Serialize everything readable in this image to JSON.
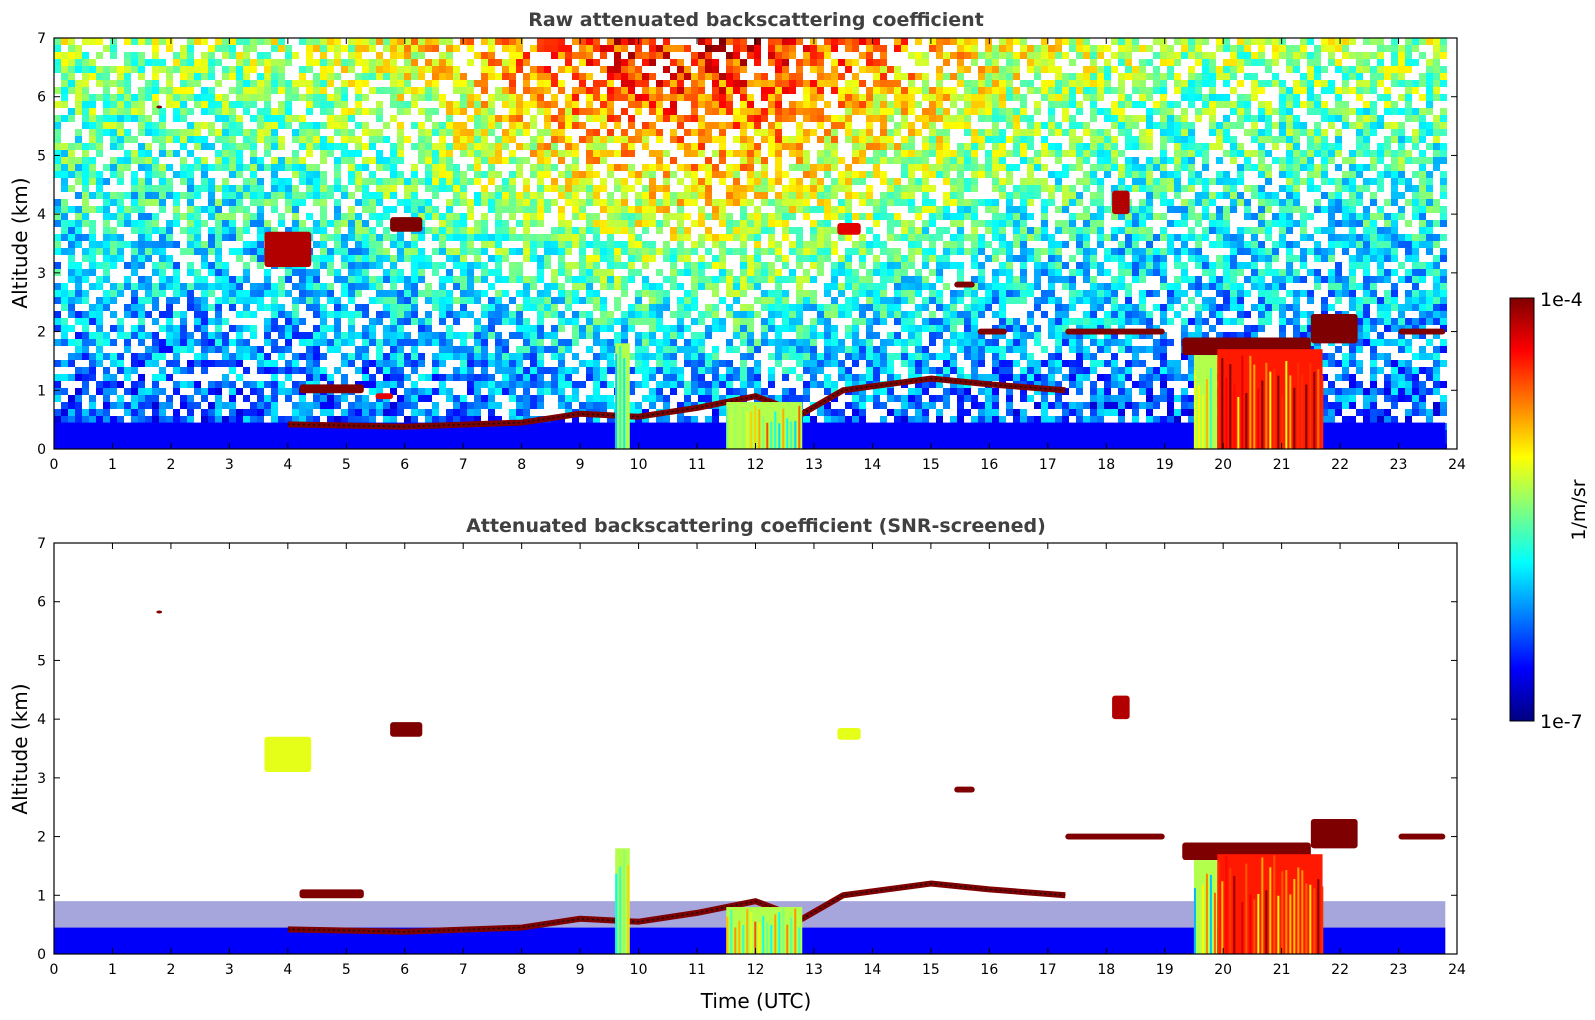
{
  "chart_data": [
    {
      "type": "heatmap",
      "title": "Raw attenuated backscattering coefficient",
      "xlabel": "",
      "ylabel": "Altitude (km)",
      "xlim": [
        0,
        24
      ],
      "ylim": [
        0,
        7
      ],
      "xticks": [
        "0",
        "1",
        "2",
        "3",
        "4",
        "5",
        "6",
        "7",
        "8",
        "9",
        "10",
        "11",
        "12",
        "13",
        "14",
        "15",
        "16",
        "17",
        "18",
        "19",
        "20",
        "21",
        "22",
        "23",
        "24"
      ],
      "yticks": [
        "0",
        "1",
        "2",
        "3",
        "4",
        "5",
        "6",
        "7"
      ],
      "background": "noisy",
      "features": [
        {
          "kind": "surface_layer",
          "x": [
            0,
            23.8
          ],
          "y": [
            0,
            0.45
          ],
          "level": 0.12
        },
        {
          "kind": "boundary_layer_top",
          "points": [
            [
              4,
              0.42
            ],
            [
              6,
              0.38
            ],
            [
              8,
              0.45
            ],
            [
              9,
              0.6
            ],
            [
              10,
              0.55
            ],
            [
              11,
              0.7
            ],
            [
              12,
              0.9
            ],
            [
              12.8,
              0.6
            ],
            [
              13.5,
              1.0
            ],
            [
              15,
              1.2
            ],
            [
              16,
              1.1
            ],
            [
              17.3,
              1.0
            ]
          ],
          "level": 1.0
        },
        {
          "kind": "cloud",
          "x": [
            4.2,
            5.3
          ],
          "y": [
            0.95,
            1.1
          ],
          "level": 1.0
        },
        {
          "kind": "cloud",
          "x": [
            5.5,
            5.8
          ],
          "y": [
            0.85,
            0.95
          ],
          "level": 0.9
        },
        {
          "kind": "cloud",
          "x": [
            3.6,
            4.4
          ],
          "y": [
            3.1,
            3.7
          ],
          "level": 0.95
        },
        {
          "kind": "cloud",
          "x": [
            5.75,
            6.3
          ],
          "y": [
            3.7,
            3.95
          ],
          "level": 1.0
        },
        {
          "kind": "cloud",
          "x": [
            1.75,
            1.85
          ],
          "y": [
            5.8,
            5.85
          ],
          "level": 1.0
        },
        {
          "kind": "cloud",
          "x": [
            13.4,
            13.8
          ],
          "y": [
            3.65,
            3.85
          ],
          "level": 0.9
        },
        {
          "kind": "cloud",
          "x": [
            15.4,
            15.75
          ],
          "y": [
            2.75,
            2.85
          ],
          "level": 1.0
        },
        {
          "kind": "cloud",
          "x": [
            15.8,
            16.3
          ],
          "y": [
            1.95,
            2.05
          ],
          "level": 1.0
        },
        {
          "kind": "cloud",
          "x": [
            17.3,
            19.0
          ],
          "y": [
            1.95,
            2.05
          ],
          "level": 1.0
        },
        {
          "kind": "cloud",
          "x": [
            18.1,
            18.4
          ],
          "y": [
            4.0,
            4.4
          ],
          "level": 0.95
        },
        {
          "kind": "cloud",
          "x": [
            19.3,
            21.5
          ],
          "y": [
            1.6,
            1.9
          ],
          "level": 1.0
        },
        {
          "kind": "cloud",
          "x": [
            21.5,
            22.3
          ],
          "y": [
            1.8,
            2.3
          ],
          "level": 1.0
        },
        {
          "kind": "cloud",
          "x": [
            23.0,
            23.8
          ],
          "y": [
            1.95,
            2.05
          ],
          "level": 1.0
        },
        {
          "kind": "precipitation",
          "x": [
            9.6,
            9.85
          ],
          "y": [
            0,
            1.8
          ],
          "level": 0.55
        },
        {
          "kind": "precipitation",
          "x": [
            11.5,
            12.8
          ],
          "y": [
            0,
            0.8
          ],
          "level": 0.55
        },
        {
          "kind": "precipitation",
          "x": [
            19.5,
            19.9
          ],
          "y": [
            0,
            1.6
          ],
          "level": 0.55
        },
        {
          "kind": "precipitation",
          "x": [
            19.9,
            21.7
          ],
          "y": [
            0,
            1.7
          ],
          "level": 0.85
        }
      ]
    },
    {
      "type": "heatmap",
      "title": "Attenuated backscattering coefficient (SNR-screened)",
      "xlabel": "Time (UTC)",
      "ylabel": "Altitude (km)",
      "xlim": [
        0,
        24
      ],
      "ylim": [
        0,
        7
      ],
      "xticks": [
        "0",
        "1",
        "2",
        "3",
        "4",
        "5",
        "6",
        "7",
        "8",
        "9",
        "10",
        "11",
        "12",
        "13",
        "14",
        "15",
        "16",
        "17",
        "18",
        "19",
        "20",
        "21",
        "22",
        "23",
        "24"
      ],
      "yticks": [
        "0",
        "1",
        "2",
        "3",
        "4",
        "5",
        "6",
        "7"
      ],
      "background": "screened",
      "features": [
        {
          "kind": "surface_layer",
          "x": [
            0,
            23.8
          ],
          "y": [
            0,
            0.45
          ],
          "level": 0.12
        },
        {
          "kind": "haze",
          "x": [
            0,
            23.8
          ],
          "y": [
            0.45,
            0.9
          ],
          "level": 0.03
        },
        {
          "kind": "boundary_layer_top",
          "points": [
            [
              4,
              0.42
            ],
            [
              6,
              0.38
            ],
            [
              8,
              0.45
            ],
            [
              9,
              0.6
            ],
            [
              10,
              0.55
            ],
            [
              11,
              0.7
            ],
            [
              12,
              0.9
            ],
            [
              12.8,
              0.6
            ],
            [
              13.5,
              1.0
            ],
            [
              15,
              1.2
            ],
            [
              16,
              1.1
            ],
            [
              17.3,
              1.0
            ]
          ],
          "level": 1.0
        },
        {
          "kind": "cloud",
          "x": [
            4.2,
            5.3
          ],
          "y": [
            0.95,
            1.1
          ],
          "level": 1.0
        },
        {
          "kind": "cloud",
          "x": [
            3.6,
            4.4
          ],
          "y": [
            3.1,
            3.7
          ],
          "level": 0.6
        },
        {
          "kind": "cloud",
          "x": [
            5.75,
            6.3
          ],
          "y": [
            3.7,
            3.95
          ],
          "level": 1.0
        },
        {
          "kind": "cloud",
          "x": [
            1.75,
            1.85
          ],
          "y": [
            5.8,
            5.85
          ],
          "level": 1.0
        },
        {
          "kind": "cloud",
          "x": [
            13.4,
            13.8
          ],
          "y": [
            3.65,
            3.85
          ],
          "level": 0.6
        },
        {
          "kind": "cloud",
          "x": [
            15.4,
            15.75
          ],
          "y": [
            2.75,
            2.85
          ],
          "level": 1.0
        },
        {
          "kind": "cloud",
          "x": [
            17.3,
            19.0
          ],
          "y": [
            1.95,
            2.05
          ],
          "level": 1.0
        },
        {
          "kind": "cloud",
          "x": [
            18.1,
            18.4
          ],
          "y": [
            4.0,
            4.4
          ],
          "level": 0.95
        },
        {
          "kind": "cloud",
          "x": [
            19.3,
            21.5
          ],
          "y": [
            1.6,
            1.9
          ],
          "level": 1.0
        },
        {
          "kind": "cloud",
          "x": [
            21.5,
            22.3
          ],
          "y": [
            1.8,
            2.3
          ],
          "level": 1.0
        },
        {
          "kind": "cloud",
          "x": [
            23.0,
            23.8
          ],
          "y": [
            1.95,
            2.05
          ],
          "level": 1.0
        },
        {
          "kind": "precipitation",
          "x": [
            9.6,
            9.85
          ],
          "y": [
            0,
            1.8
          ],
          "level": 0.55
        },
        {
          "kind": "precipitation",
          "x": [
            11.5,
            12.8
          ],
          "y": [
            0,
            0.8
          ],
          "level": 0.55
        },
        {
          "kind": "precipitation",
          "x": [
            19.5,
            19.9
          ],
          "y": [
            0,
            1.6
          ],
          "level": 0.55
        },
        {
          "kind": "precipitation",
          "x": [
            19.9,
            21.7
          ],
          "y": [
            0,
            1.7
          ],
          "level": 0.85
        }
      ]
    }
  ],
  "colorbar": {
    "label": "1/m/sr",
    "min_label": "1e-7",
    "max_label": "1e-4",
    "colormap": "jet",
    "scale": "log",
    "colors": [
      "#00007f",
      "#0000ff",
      "#007fff",
      "#00ffff",
      "#7fff7f",
      "#ffff00",
      "#ff7f00",
      "#ff0000",
      "#7f0000"
    ]
  }
}
